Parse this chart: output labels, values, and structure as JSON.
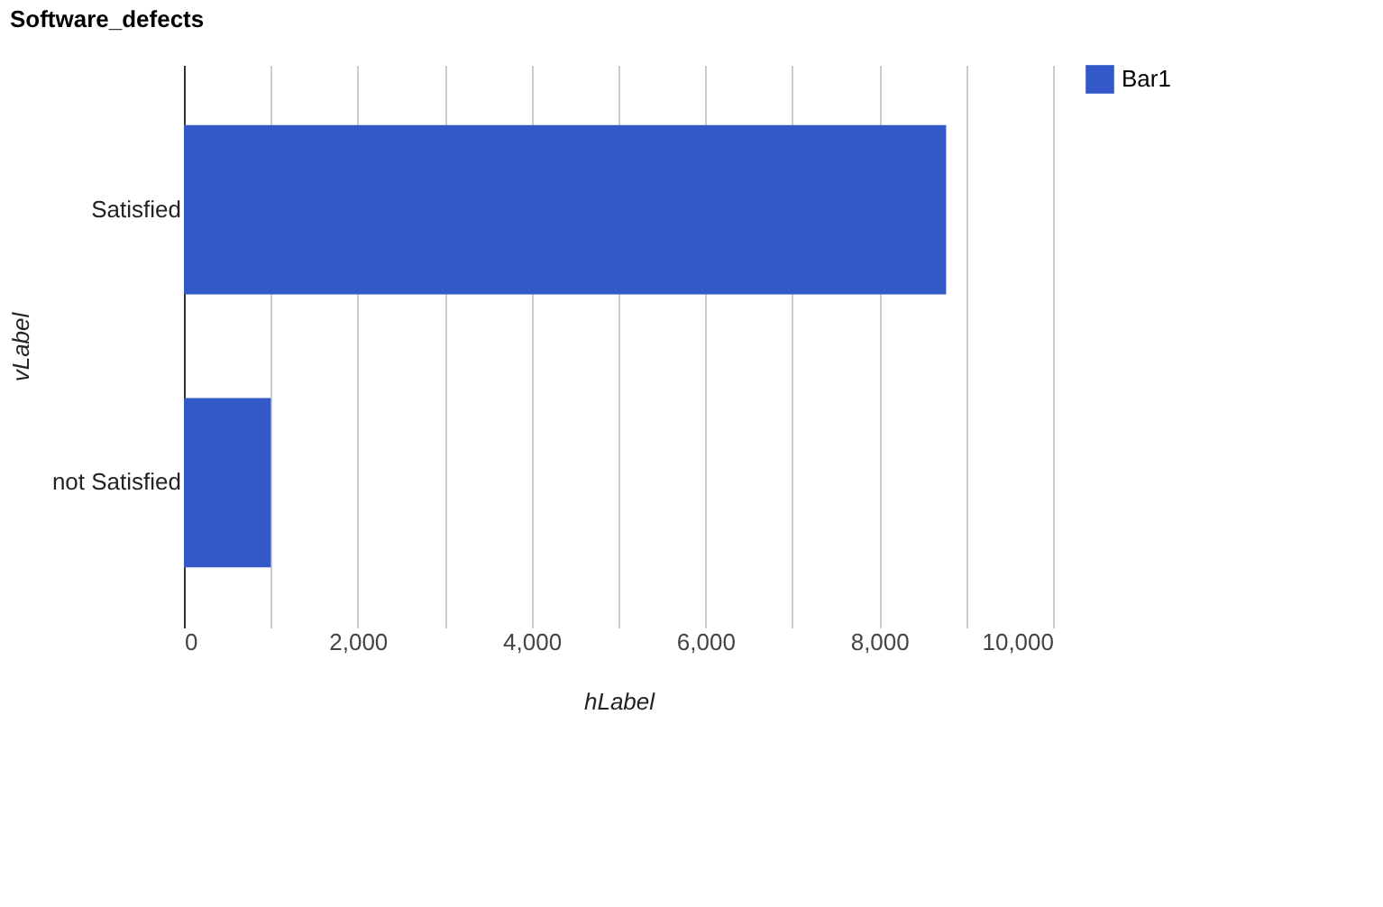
{
  "chart_data": {
    "type": "bar",
    "orientation": "horizontal",
    "title": "Software_defects",
    "xlabel": "hLabel",
    "ylabel": "vLabel",
    "categories": [
      "Satisfied",
      "not Satisfied"
    ],
    "series": [
      {
        "name": "Bar1",
        "color": "#3359c9",
        "values": [
          8770,
          1000
        ]
      }
    ],
    "xlim": [
      0,
      10000
    ],
    "xticks": [
      0,
      {
        "value": 1000,
        "label": null
      },
      {
        "value": 2000,
        "label": "2,000"
      },
      {
        "value": 3000,
        "label": null
      },
      {
        "value": 4000,
        "label": "4,000"
      },
      {
        "value": 5000,
        "label": null
      },
      {
        "value": 6000,
        "label": "6,000"
      },
      {
        "value": 7000,
        "label": null
      },
      {
        "value": 8000,
        "label": "8,000"
      },
      {
        "value": 9000,
        "label": null
      },
      {
        "value": 10000,
        "label": "10,000"
      }
    ],
    "grid": "x",
    "legend": "top right"
  }
}
